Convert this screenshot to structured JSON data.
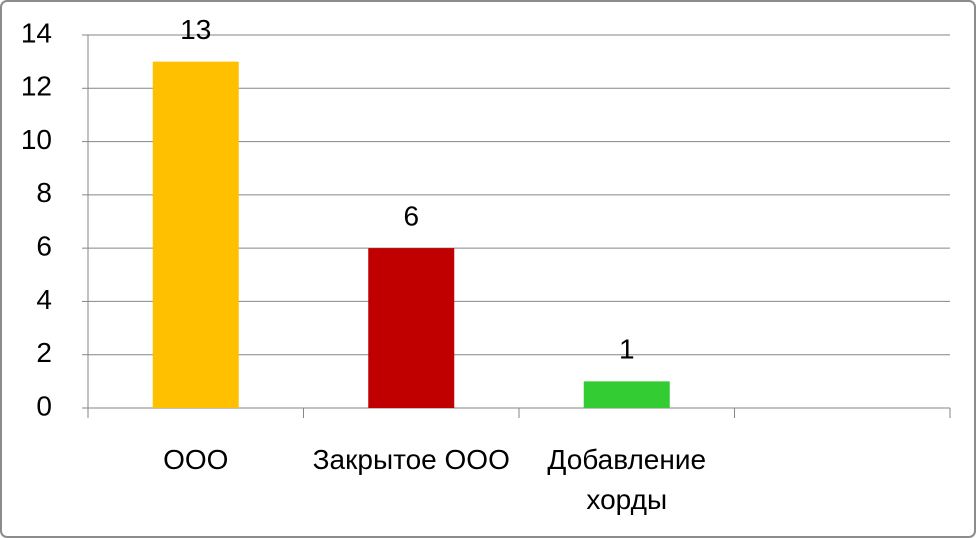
{
  "chart_data": {
    "type": "bar",
    "categories": [
      "ООО",
      "Закрытое ООО",
      "Добавление хорды",
      null
    ],
    "values": [
      13,
      6,
      1,
      null
    ],
    "colors": [
      "#ffc000",
      "#c00000",
      "#33cc33",
      null
    ],
    "ylim": [
      0,
      14
    ],
    "yticks": [
      0,
      2,
      4,
      6,
      8,
      10,
      12,
      14
    ],
    "grid": true
  }
}
